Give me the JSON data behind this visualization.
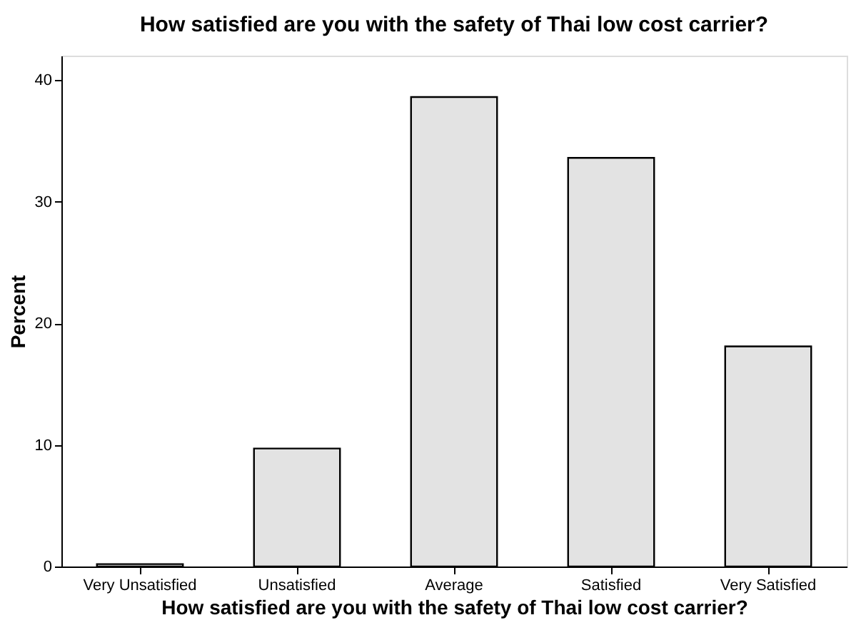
{
  "chart_data": {
    "type": "bar",
    "title": "How satisfied are you with the safety of Thai low cost carrier?",
    "xlabel": "How satisfied are you with the safety of Thai low cost carrier?",
    "ylabel": "Percent",
    "categories": [
      "Very Unsatisfied",
      "Unsatisfied",
      "Average",
      "Satisfied",
      "Very Satisfied"
    ],
    "values": [
      0.2,
      9.7,
      38.6,
      33.6,
      18.1
    ],
    "color": "#e3e3e3",
    "ylim": [
      0,
      42
    ],
    "yticks": [
      0,
      10,
      20,
      30,
      40
    ],
    "grid": false
  }
}
